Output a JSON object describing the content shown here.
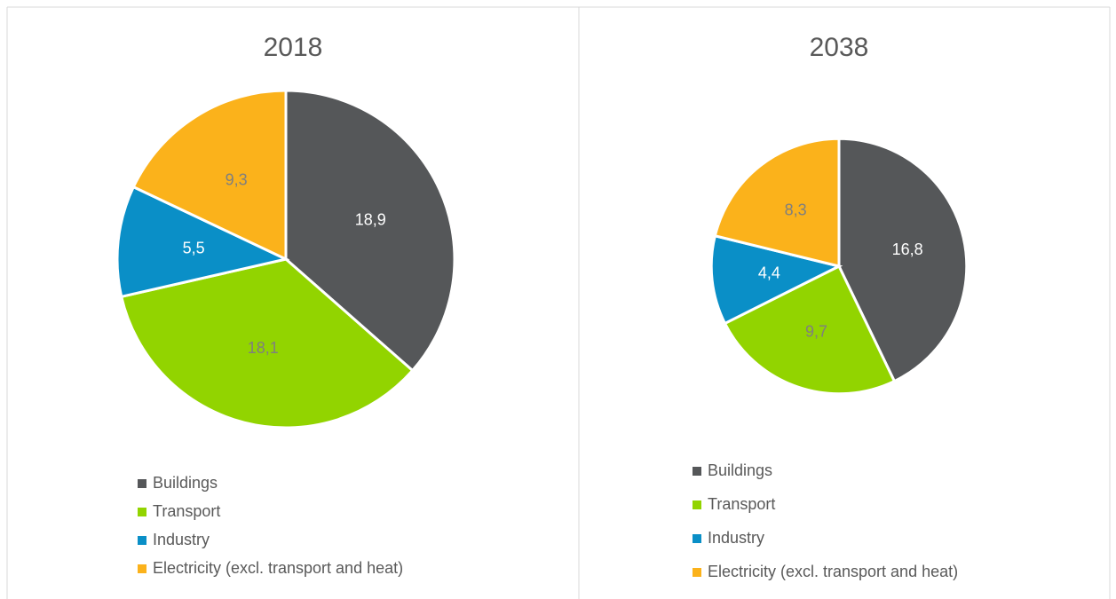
{
  "chart_data": [
    {
      "type": "pie",
      "title": "2018",
      "categories": [
        "Buildings",
        "Transport",
        "Industry",
        "Electricity (excl. transport and heat)"
      ],
      "values": [
        18.9,
        18.1,
        5.5,
        9.3
      ],
      "value_labels": [
        "18,9",
        "18,1",
        "5,5",
        "9,3"
      ],
      "colors": [
        "#555759",
        "#92d400",
        "#0a8fc7",
        "#fbb21b"
      ],
      "legend": "bottom"
    },
    {
      "type": "pie",
      "title": "2038",
      "categories": [
        "Buildings",
        "Transport",
        "Industry",
        "Electricity (excl. transport and heat)"
      ],
      "values": [
        16.8,
        9.7,
        4.4,
        8.3
      ],
      "value_labels": [
        "16,8",
        "9,7",
        "4,4",
        "8,3"
      ],
      "colors": [
        "#555759",
        "#92d400",
        "#0a8fc7",
        "#fbb21b"
      ],
      "legend": "bottom"
    }
  ]
}
